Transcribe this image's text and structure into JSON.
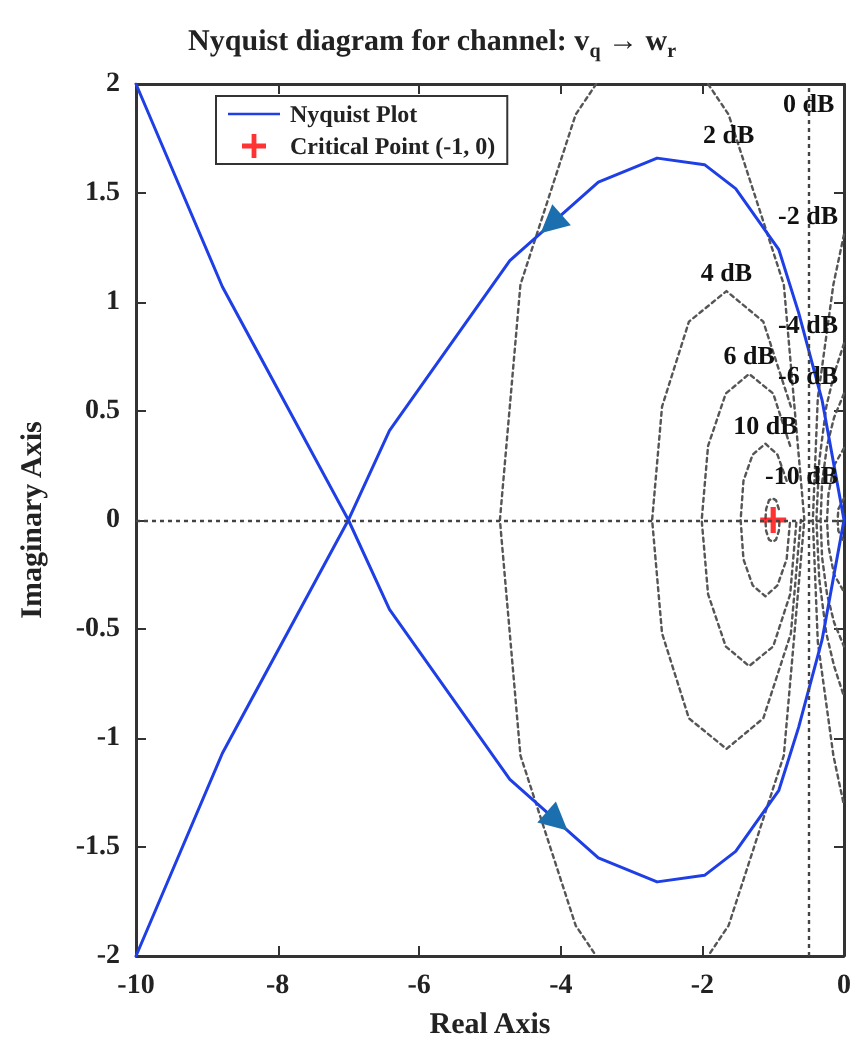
{
  "chart_data": {
    "type": "line",
    "title": "Nyquist diagram for channel: v$_{q}$ → w$_{r}$",
    "xlabel": "Real Axis",
    "ylabel": "Imaginary Axis",
    "xlim": [
      -10,
      0
    ],
    "xticks": [
      -10,
      -8,
      -6,
      -4,
      -2,
      0
    ],
    "ylim": [
      -2,
      2
    ],
    "yticks": [
      -2,
      -1.5,
      -1,
      -0.5,
      0,
      0.5,
      1,
      1.5,
      2
    ],
    "legend": "top left",
    "ref_lines": [
      {
        "axis": "y",
        "value": 0
      },
      {
        "axis": "x",
        "value": -0.5,
        "label": "0 dB"
      }
    ],
    "annotations": [
      {
        "text": "2 dB",
        "x": -1.63,
        "y": 1.86
      },
      {
        "text": "-2 dB",
        "x": 0,
        "y": 1.31
      },
      {
        "text": "4 dB",
        "x": -1.66,
        "y": 1.05
      },
      {
        "text": "-4 dB",
        "x": 0,
        "y": 0.81
      },
      {
        "text": "6 dB",
        "x": -1.34,
        "y": 0.67
      },
      {
        "text": "-6 dB",
        "x": 0,
        "y": 0.58
      },
      {
        "text": "10 dB",
        "x": -1.11,
        "y": 0.35
      },
      {
        "text": "-10 dB",
        "x": -0.22,
        "y": 0.12
      }
    ],
    "series": [
      {
        "color": "#555555",
        "marker": "none",
        "line_style": "dotted",
        "x": [
          -3.5,
          -3.79,
          -4.57,
          -4.86,
          -4.57,
          -3.79,
          -3.5
        ],
        "values": [
          2,
          1.86,
          1.08,
          0,
          -1.08,
          -1.86,
          -2
        ]
      },
      {
        "color": "#555555",
        "marker": "none",
        "line_style": "dotted",
        "x": [
          -1.92,
          -1.63,
          -0.85,
          -0.56,
          -0.85,
          -1.63,
          -1.92
        ],
        "values": [
          2,
          1.86,
          1.08,
          0,
          -1.08,
          -1.86,
          -2
        ]
      },
      {
        "color": "#555555",
        "marker": "none",
        "line_style": "dotted",
        "x": [
          -0.75,
          -1.14,
          -1.66,
          -2.19,
          -2.57,
          -2.71,
          -2.57,
          -2.19,
          -1.66,
          -1.14,
          -0.75,
          -0.61
        ],
        "values": [
          0.52,
          0.91,
          1.05,
          0.91,
          0.52,
          0,
          -0.52,
          -0.91,
          -1.05,
          -0.91,
          -0.52,
          0
        ]
      },
      {
        "color": "#555555",
        "marker": "none",
        "line_style": "dotted",
        "x": [
          -0.76,
          -1,
          -1.34,
          -1.67,
          -1.92,
          -2.01,
          -1.92,
          -1.67,
          -1.34,
          -1,
          -0.76,
          -0.67
        ],
        "values": [
          0.34,
          0.58,
          0.67,
          0.58,
          0.34,
          0,
          -0.34,
          -0.58,
          -0.67,
          -0.58,
          -0.34,
          0
        ]
      },
      {
        "color": "#555555",
        "marker": "none",
        "line_style": "dotted",
        "x": [
          -0.81,
          -0.94,
          -1.11,
          -1.29,
          -1.42,
          -1.46,
          -1.42,
          -1.29,
          -1.11,
          -0.94,
          -0.81,
          -0.76
        ],
        "values": [
          0.18,
          0.3,
          0.35,
          0.3,
          0.18,
          0,
          -0.18,
          -0.3,
          -0.35,
          -0.3,
          -0.18,
          0
        ]
      },
      {
        "color": "#555555",
        "marker": "none",
        "line_style": "dotted",
        "x": [
          -0.92,
          -0.96,
          -1.01,
          -1.06,
          -1.1,
          -1.11,
          -1.1,
          -1.06,
          -1.01,
          -0.96,
          -0.92,
          -0.91
        ],
        "values": [
          0.05,
          0.09,
          0.1,
          0.09,
          0.05,
          0,
          -0.05,
          -0.09,
          -0.1,
          -0.09,
          -0.05,
          0
        ]
      },
      {
        "color": "#555555",
        "marker": "none",
        "line_style": "dotted",
        "x": [
          0,
          -0.15,
          -0.37,
          -0.44,
          -0.37,
          -0.15,
          0
        ],
        "values": [
          1.31,
          1.08,
          0.56,
          0,
          -0.56,
          -1.08,
          -1.31
        ]
      },
      {
        "color": "#555555",
        "marker": "none",
        "line_style": "dotted",
        "x": [
          0,
          -0.14,
          -0.25,
          -0.35,
          -0.39,
          -0.35,
          -0.25,
          -0.14,
          0
        ],
        "values": [
          0.81,
          0.67,
          0.52,
          0.27,
          0,
          -0.27,
          -0.52,
          -0.67,
          -0.81
        ]
      },
      {
        "color": "#555555",
        "marker": "none",
        "line_style": "dotted",
        "x": [
          0,
          -0.14,
          -0.24,
          -0.31,
          -0.33,
          -0.31,
          -0.24,
          -0.14,
          0
        ],
        "values": [
          0.58,
          0.47,
          0.34,
          0.17,
          0,
          -0.17,
          -0.34,
          -0.47,
          -0.58
        ]
      },
      {
        "color": "#555555",
        "marker": "none",
        "line_style": "dotted",
        "x": [
          0,
          -0.14,
          -0.22,
          -0.24,
          -0.22,
          -0.14,
          0
        ],
        "values": [
          0.33,
          0.25,
          0.12,
          0,
          -0.12,
          -0.25,
          -0.33
        ]
      },
      {
        "color": "#555555",
        "marker": "none",
        "line_style": "dotted",
        "x": [
          0,
          -0.08,
          -0.09,
          -0.08,
          0
        ],
        "values": [
          0.1,
          0.05,
          0,
          -0.05,
          -0.1
        ]
      },
      {
        "name": "Nyquist Plot",
        "color": "#1f3fe6",
        "marker": "none",
        "line_style": "solid",
        "x": [
          -10,
          -8.78,
          -7,
          -6.42,
          -4.72,
          -3.47,
          -2.64,
          -1.97,
          -1.53,
          -0.92,
          -0.64,
          -0.31,
          0,
          -0.31,
          -0.64,
          -0.92,
          -1.53,
          -1.97,
          -2.64,
          -3.47,
          -4.72,
          -6.42,
          -7,
          -8.78,
          -10
        ],
        "values": [
          2,
          1.07,
          0,
          -0.41,
          -1.19,
          -1.55,
          -1.66,
          -1.63,
          -1.52,
          -1.24,
          -0.95,
          -0.55,
          0,
          0.55,
          0.95,
          1.24,
          1.52,
          1.63,
          1.66,
          1.55,
          1.19,
          0.41,
          0,
          -1.07,
          -2
        ]
      },
      {
        "type": "scatter",
        "name": "Critical Point (-1, 0)",
        "color": "#ff0000",
        "marker": "cross",
        "x": [
          -1
        ],
        "values": [
          0
        ]
      }
    ]
  }
}
